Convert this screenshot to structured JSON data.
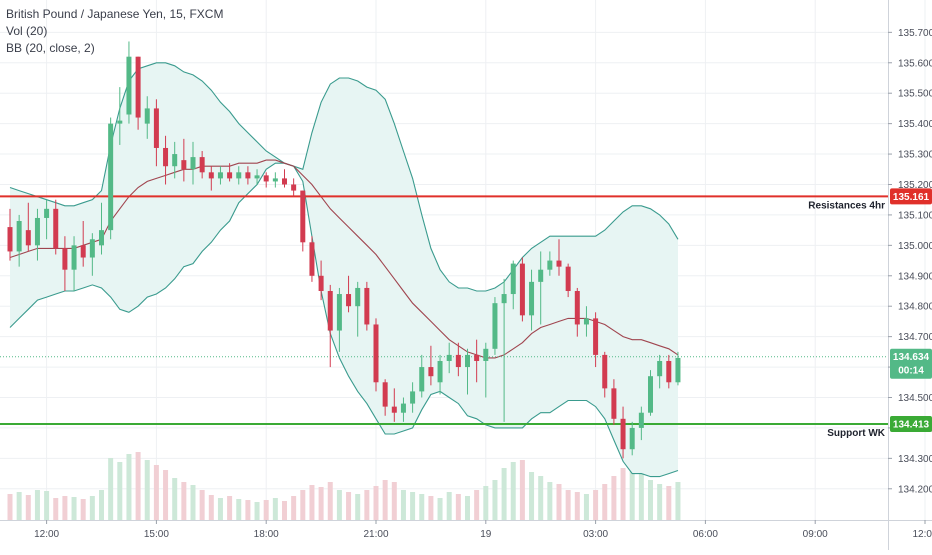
{
  "legend": {
    "symbol": "British Pound / Japanese Yen, 15, FXCM",
    "volume": "Vol (20)",
    "bollinger": "BB (20, close, 2)"
  },
  "colors": {
    "up": "#53b987",
    "down": "#d23b50",
    "vol_up": "#cde8d8",
    "vol_down": "#f1cfd4",
    "band": "#3a9b8e",
    "band_fill": "#e7f5f3",
    "basis": "#a0454f",
    "resistance": "#e0302a",
    "support": "#3aaa35",
    "price_tag": "#53b987",
    "grid": "#eef0f3",
    "axis_text": "#4a4e5a"
  },
  "chart_data": {
    "type": "candlestick",
    "y_axis": {
      "range": [
        134.15,
        135.78
      ],
      "ticks": [
        "135.700",
        "135.600",
        "135.500",
        "135.400",
        "135.300",
        "135.200",
        "135.100",
        "135.000",
        "134.900",
        "134.800",
        "134.700",
        "134.600",
        "134.500",
        "134.400",
        "134.300",
        "134.200"
      ]
    },
    "x_axis": {
      "labels": [
        {
          "label": "12:00",
          "index": 4
        },
        {
          "label": "15:00",
          "index": 16
        },
        {
          "label": "18:00",
          "index": 28
        },
        {
          "label": "21:00",
          "index": 40
        },
        {
          "label": "19",
          "index": 52
        },
        {
          "label": "03:00",
          "index": 64
        },
        {
          "label": "06:00",
          "index": 76
        },
        {
          "label": "09:00",
          "index": 88
        },
        {
          "label": "12:00",
          "index": 100
        }
      ]
    },
    "candles": [
      [
        135.06,
        135.12,
        134.95,
        134.98
      ],
      [
        134.98,
        135.1,
        134.93,
        135.08
      ],
      [
        135.05,
        135.14,
        134.98,
        135.0
      ],
      [
        135.0,
        135.12,
        134.95,
        135.09
      ],
      [
        135.09,
        135.15,
        135.02,
        135.12
      ],
      [
        135.12,
        135.15,
        134.97,
        134.99
      ],
      [
        134.99,
        135.03,
        134.85,
        134.92
      ],
      [
        134.92,
        135.03,
        134.85,
        135.0
      ],
      [
        135.0,
        135.08,
        134.93,
        134.96
      ],
      [
        134.96,
        135.04,
        134.9,
        135.02
      ],
      [
        135.0,
        135.14,
        134.97,
        135.05
      ],
      [
        135.05,
        135.42,
        135.02,
        135.4
      ],
      [
        135.4,
        135.52,
        135.33,
        135.41
      ],
      [
        135.43,
        135.67,
        135.4,
        135.62
      ],
      [
        135.62,
        135.62,
        135.38,
        135.42
      ],
      [
        135.4,
        135.49,
        135.35,
        135.45
      ],
      [
        135.45,
        135.48,
        135.26,
        135.32
      ],
      [
        135.32,
        135.36,
        135.2,
        135.26
      ],
      [
        135.26,
        135.34,
        135.22,
        135.3
      ],
      [
        135.28,
        135.35,
        135.21,
        135.25
      ],
      [
        135.25,
        135.34,
        135.2,
        135.29
      ],
      [
        135.29,
        135.31,
        135.22,
        135.24
      ],
      [
        135.24,
        135.26,
        135.18,
        135.22
      ],
      [
        135.22,
        135.26,
        135.2,
        135.24
      ],
      [
        135.24,
        135.27,
        135.21,
        135.22
      ],
      [
        135.22,
        135.26,
        135.2,
        135.24
      ],
      [
        135.24,
        135.26,
        135.2,
        135.22
      ],
      [
        135.22,
        135.25,
        135.2,
        135.23
      ],
      [
        135.23,
        135.24,
        135.19,
        135.21
      ],
      [
        135.21,
        135.24,
        135.19,
        135.22
      ],
      [
        135.22,
        135.25,
        135.19,
        135.2
      ],
      [
        135.2,
        135.22,
        135.16,
        135.18
      ],
      [
        135.18,
        135.18,
        134.98,
        135.01
      ],
      [
        135.01,
        135.03,
        134.88,
        134.9
      ],
      [
        134.9,
        134.95,
        134.82,
        134.85
      ],
      [
        134.85,
        134.87,
        134.6,
        134.72
      ],
      [
        134.72,
        134.86,
        134.65,
        134.84
      ],
      [
        134.84,
        134.9,
        134.78,
        134.8
      ],
      [
        134.8,
        134.88,
        134.7,
        134.86
      ],
      [
        134.86,
        134.88,
        134.72,
        134.74
      ],
      [
        134.74,
        134.76,
        134.52,
        134.55
      ],
      [
        134.55,
        134.56,
        134.44,
        134.47
      ],
      [
        134.47,
        134.53,
        134.42,
        134.45
      ],
      [
        134.45,
        134.5,
        134.42,
        134.48
      ],
      [
        134.48,
        134.55,
        134.45,
        134.52
      ],
      [
        134.52,
        134.64,
        134.5,
        134.6
      ],
      [
        134.6,
        134.67,
        134.54,
        134.57
      ],
      [
        134.55,
        134.64,
        134.51,
        134.62
      ],
      [
        134.62,
        134.68,
        134.58,
        134.64
      ],
      [
        134.64,
        134.68,
        134.57,
        134.6
      ],
      [
        134.6,
        134.66,
        134.51,
        134.64
      ],
      [
        134.64,
        134.69,
        134.55,
        134.62
      ],
      [
        134.62,
        134.68,
        134.5,
        134.66
      ],
      [
        134.66,
        134.83,
        134.64,
        134.81
      ],
      [
        134.81,
        134.89,
        134.42,
        134.84
      ],
      [
        134.84,
        134.95,
        134.79,
        134.94
      ],
      [
        134.94,
        134.96,
        134.75,
        134.77
      ],
      [
        134.77,
        134.92,
        134.72,
        134.88
      ],
      [
        134.88,
        134.98,
        134.74,
        134.92
      ],
      [
        134.92,
        134.98,
        134.9,
        134.95
      ],
      [
        134.95,
        135.02,
        134.9,
        134.93
      ],
      [
        134.93,
        134.94,
        134.83,
        134.85
      ],
      [
        134.85,
        134.86,
        134.7,
        134.74
      ],
      [
        134.74,
        134.8,
        134.7,
        134.76
      ],
      [
        134.76,
        134.78,
        134.6,
        134.64
      ],
      [
        134.64,
        134.65,
        134.5,
        134.53
      ],
      [
        134.53,
        134.56,
        134.41,
        134.43
      ],
      [
        134.43,
        134.47,
        134.3,
        134.33
      ],
      [
        134.33,
        134.42,
        134.31,
        134.4
      ],
      [
        134.4,
        134.47,
        134.36,
        134.45
      ],
      [
        134.45,
        134.59,
        134.44,
        134.57
      ],
      [
        134.57,
        134.64,
        134.53,
        134.62
      ],
      [
        134.62,
        134.64,
        134.53,
        134.55
      ],
      [
        134.55,
        134.65,
        134.54,
        134.63
      ]
    ],
    "volumes": [
      26,
      28,
      25,
      30,
      29,
      22,
      24,
      23,
      21,
      24,
      30,
      62,
      58,
      66,
      68,
      60,
      55,
      50,
      42,
      38,
      35,
      30,
      25,
      22,
      24,
      21,
      20,
      18,
      20,
      22,
      19,
      24,
      30,
      35,
      33,
      38,
      30,
      28,
      26,
      30,
      34,
      40,
      38,
      30,
      28,
      26,
      24,
      22,
      28,
      26,
      24,
      30,
      34,
      40,
      52,
      58,
      60,
      48,
      44,
      38,
      36,
      30,
      28,
      26,
      30,
      36,
      44,
      52,
      60,
      48,
      40,
      36,
      34,
      38
    ],
    "bollinger": {
      "upper": [
        135.19,
        135.18,
        135.17,
        135.16,
        135.15,
        135.14,
        135.13,
        135.13,
        135.14,
        135.15,
        135.18,
        135.33,
        135.45,
        135.54,
        135.58,
        135.59,
        135.6,
        135.6,
        135.59,
        135.57,
        135.56,
        135.54,
        135.51,
        135.47,
        135.44,
        135.4,
        135.37,
        135.34,
        135.31,
        135.29,
        135.27,
        135.26,
        135.25,
        135.37,
        135.47,
        135.53,
        135.55,
        135.55,
        135.54,
        135.52,
        135.51,
        135.48,
        135.4,
        135.31,
        135.22,
        135.1,
        134.99,
        134.92,
        134.88,
        134.86,
        134.86,
        134.85,
        134.85,
        134.86,
        134.88,
        134.92,
        134.96,
        134.99,
        135.01,
        135.03,
        135.03,
        135.03,
        135.03,
        135.03,
        135.03,
        135.05,
        135.08,
        135.11,
        135.13,
        135.13,
        135.12,
        135.1,
        135.07,
        135.02
      ],
      "basis": [
        134.96,
        134.97,
        134.98,
        134.99,
        134.99,
        134.99,
        134.99,
        134.99,
        135.0,
        135.01,
        135.02,
        135.08,
        135.12,
        135.16,
        135.19,
        135.21,
        135.22,
        135.23,
        135.24,
        135.25,
        135.25,
        135.26,
        135.26,
        135.26,
        135.26,
        135.27,
        135.27,
        135.27,
        135.28,
        135.28,
        135.27,
        135.26,
        135.23,
        135.2,
        135.16,
        135.12,
        135.09,
        135.06,
        135.03,
        135.0,
        134.97,
        134.93,
        134.89,
        134.85,
        134.81,
        134.78,
        134.75,
        134.72,
        134.69,
        134.67,
        134.65,
        134.64,
        134.63,
        134.63,
        134.64,
        134.66,
        134.68,
        134.71,
        134.73,
        134.74,
        134.75,
        134.76,
        134.76,
        134.76,
        134.75,
        134.74,
        134.72,
        134.7,
        134.69,
        134.69,
        134.68,
        134.67,
        134.66,
        134.64
      ],
      "lower": [
        134.73,
        134.76,
        134.79,
        134.82,
        134.83,
        134.84,
        134.85,
        134.85,
        134.86,
        134.87,
        134.86,
        134.83,
        134.79,
        134.78,
        134.8,
        134.83,
        134.84,
        134.86,
        134.89,
        134.93,
        134.94,
        134.98,
        135.01,
        135.05,
        135.08,
        135.14,
        135.17,
        135.2,
        135.25,
        135.27,
        135.27,
        135.26,
        135.21,
        135.03,
        134.85,
        134.71,
        134.63,
        134.57,
        134.52,
        134.48,
        134.43,
        134.38,
        134.38,
        134.39,
        134.4,
        134.46,
        134.51,
        134.52,
        134.5,
        134.48,
        134.44,
        134.43,
        134.41,
        134.4,
        134.4,
        134.4,
        134.4,
        134.43,
        134.45,
        134.45,
        134.47,
        134.49,
        134.49,
        134.49,
        134.47,
        134.43,
        134.36,
        134.29,
        134.25,
        134.25,
        134.24,
        134.24,
        134.25,
        134.26
      ]
    },
    "levels": [
      {
        "name": "Resistances 4hr",
        "value": 135.161,
        "label": "135.161"
      },
      {
        "name": "Support WK",
        "value": 134.413,
        "label": "134.413"
      }
    ],
    "last_price": {
      "value": 134.634,
      "label": "134.634",
      "countdown": "00:14"
    }
  }
}
